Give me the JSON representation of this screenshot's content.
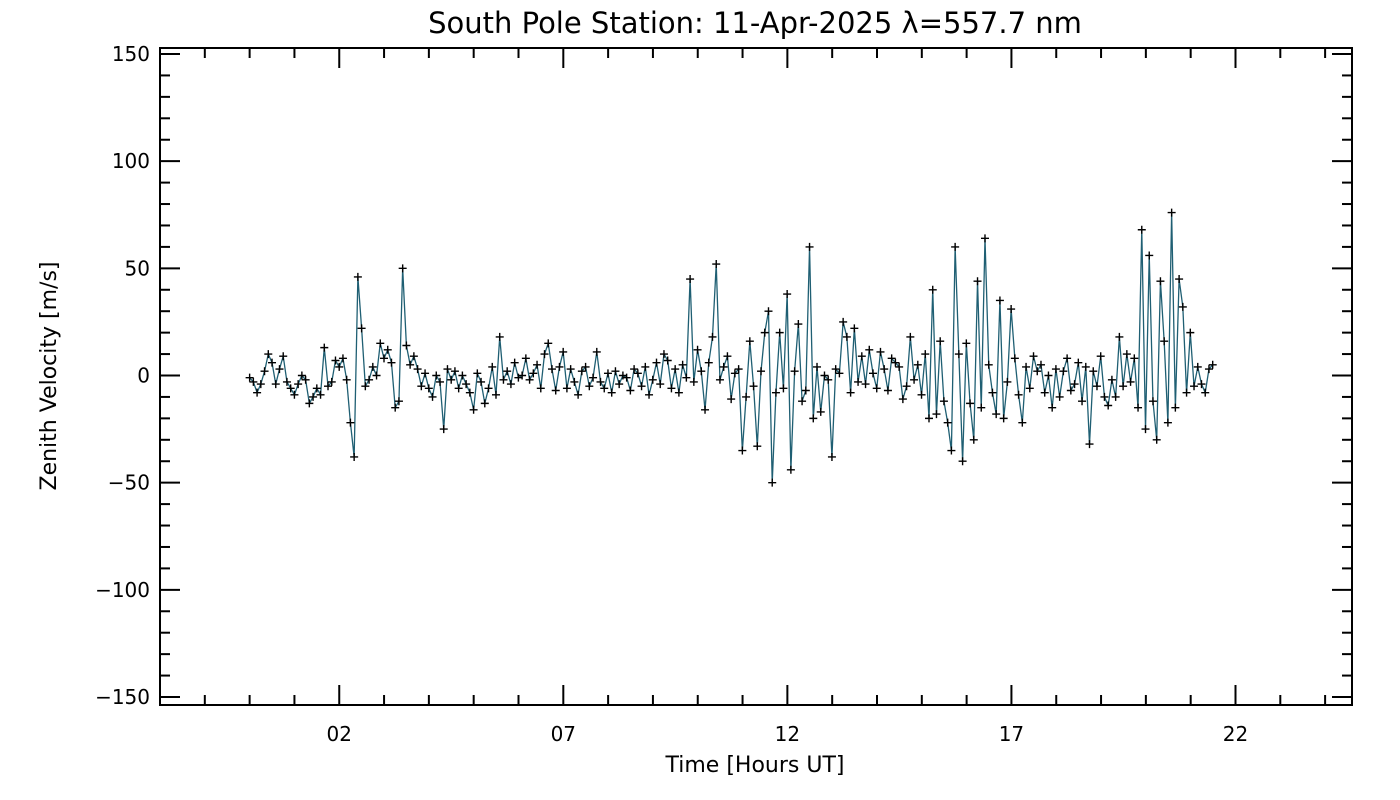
{
  "chart_data": {
    "type": "line",
    "title": "South Pole Station: 11-Apr-2025 λ=557.7 nm",
    "xlabel": "Time [Hours UT]",
    "ylabel": "Zenith Velocity [m/s]",
    "xlim": [
      -2,
      24.6
    ],
    "ylim": [
      -150,
      150
    ],
    "xticks": [
      2,
      7,
      12,
      17,
      22
    ],
    "xtick_labels": [
      "02",
      "07",
      "12",
      "17",
      "22"
    ],
    "yticks": [
      -150,
      -100,
      -50,
      0,
      50,
      100,
      150
    ],
    "ytick_labels": [
      "−150",
      "−100",
      "−50",
      "0",
      "50",
      "100",
      "150"
    ],
    "grid": false,
    "line_color": "#1f5f73",
    "marker_color": "#000000",
    "marker": "plus",
    "series": [
      {
        "values": [
          -1,
          -3,
          -8,
          -4,
          2,
          10,
          6,
          -4,
          3,
          9,
          -3,
          -6,
          -9,
          -4,
          0,
          -2,
          -13,
          -10,
          -6,
          -9,
          13,
          -5,
          -3,
          7,
          4,
          8,
          -2,
          -22,
          -38,
          46,
          22,
          -5,
          -2,
          4,
          0,
          15,
          8,
          12,
          6,
          -15,
          -12,
          50,
          14,
          5,
          9,
          3,
          -5,
          1,
          -6,
          -10,
          0,
          -3,
          -25,
          3,
          -2,
          2,
          -6,
          0,
          -4,
          -8,
          -16,
          1,
          -3,
          -13,
          -6,
          4,
          -9,
          18,
          -2,
          2,
          -4,
          6,
          -1,
          0,
          8,
          -2,
          1,
          5,
          -6,
          10,
          15,
          3,
          -7,
          4,
          11,
          -6,
          3,
          -3,
          -9,
          2,
          4,
          -5,
          -1,
          11,
          -3,
          -6,
          1,
          -8,
          2,
          -4,
          0,
          -1,
          -7,
          3,
          1,
          -5,
          4,
          -9,
          -2,
          6,
          -4,
          10,
          7,
          -6,
          3,
          -8,
          5,
          -1,
          45,
          -3,
          12,
          2,
          -16,
          6,
          18,
          52,
          -2,
          4,
          9,
          -11,
          1,
          3,
          -35,
          -10,
          16,
          -5,
          -33,
          2,
          20,
          30,
          -50,
          -8,
          20,
          -6,
          38,
          -44,
          2,
          24,
          -12,
          -7,
          60,
          -20,
          4,
          -17,
          0,
          -2,
          -38,
          3,
          1,
          25,
          18,
          -8,
          22,
          -3,
          9,
          -4,
          12,
          1,
          -6,
          11,
          3,
          -7,
          8,
          6,
          4,
          -11,
          -5,
          18,
          -2,
          5,
          -9,
          10,
          -20,
          40,
          -18,
          16,
          -12,
          -22,
          -35,
          60,
          10,
          -40,
          15,
          -13,
          -30,
          44,
          -15,
          64,
          5,
          -8,
          -18,
          35,
          -20,
          -3,
          31,
          8,
          -9,
          -22,
          4,
          -6,
          9,
          2,
          5,
          -8,
          0,
          -15,
          3,
          -10,
          2,
          8,
          -7,
          -4,
          6,
          -12,
          4,
          -32,
          2,
          -5,
          9,
          -10,
          -14,
          -2,
          -10,
          18,
          -5,
          10,
          -3,
          8,
          -15,
          68,
          -25,
          56,
          -12,
          -30,
          44,
          16,
          -22,
          76,
          -15,
          45,
          32,
          -8,
          20,
          -5,
          4,
          -4,
          -8,
          3,
          5
        ],
        "step_hours": 0.0833
      }
    ]
  }
}
